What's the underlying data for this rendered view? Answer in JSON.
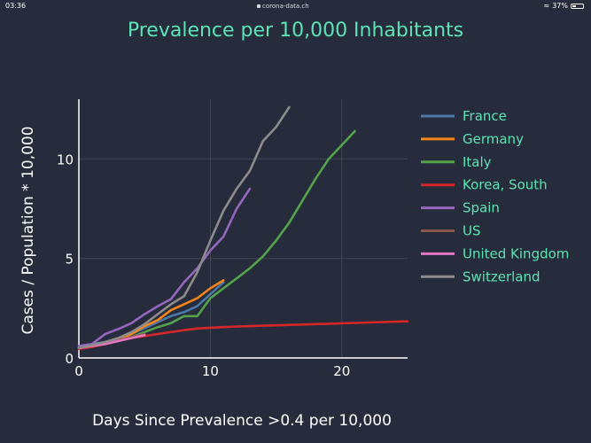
{
  "status_bar": {
    "time": "03:36",
    "url": "corona-data.ch",
    "battery": "37%",
    "battery_level": 0.37
  },
  "chart_data": {
    "type": "line",
    "title": "Prevalence per 10,000 Inhabitants",
    "xlabel": "Days Since Prevalence >0.4 per 10,000",
    "ylabel": "Cases / Population * 10,000",
    "xlim": [
      0,
      25
    ],
    "ylim": [
      0,
      13
    ],
    "x_ticks": [
      0,
      10,
      20
    ],
    "y_ticks": [
      0,
      5,
      10
    ],
    "grid": true,
    "legend_position": "right",
    "series": [
      {
        "name": "France",
        "color": "#4c78a8",
        "x": [
          0,
          1,
          2,
          3,
          4,
          5,
          6,
          7,
          8,
          9,
          10,
          11
        ],
        "y": [
          0.6,
          0.7,
          0.8,
          0.95,
          1.2,
          1.5,
          1.8,
          2.1,
          2.3,
          2.6,
          3.2,
          3.8
        ]
      },
      {
        "name": "Germany",
        "color": "#f58518",
        "x": [
          0,
          1,
          2,
          3,
          4,
          5,
          6,
          7,
          8,
          9,
          10,
          11
        ],
        "y": [
          0.5,
          0.6,
          0.75,
          0.9,
          1.2,
          1.6,
          1.9,
          2.4,
          2.7,
          3.0,
          3.5,
          3.9
        ]
      },
      {
        "name": "Italy",
        "color": "#54a24b",
        "x": [
          0,
          1,
          2,
          3,
          4,
          5,
          6,
          7,
          8,
          9,
          10,
          11,
          12,
          13,
          14,
          15,
          16,
          17,
          18,
          19,
          20,
          21
        ],
        "y": [
          0.5,
          0.6,
          0.7,
          0.85,
          1.05,
          1.3,
          1.55,
          1.75,
          2.1,
          2.1,
          3.0,
          3.5,
          4.0,
          4.5,
          5.1,
          5.9,
          6.8,
          7.9,
          9.0,
          10.0,
          10.7,
          11.4
        ]
      },
      {
        "name": "Korea, South",
        "color": "#d62728",
        "x": [
          0,
          1,
          2,
          3,
          4,
          5,
          6,
          7,
          8,
          9,
          10,
          11,
          12,
          13,
          14,
          15,
          16,
          17,
          18,
          19,
          20,
          21,
          22,
          23,
          24,
          25
        ],
        "y": [
          0.45,
          0.55,
          0.7,
          0.85,
          1.0,
          1.1,
          1.2,
          1.3,
          1.4,
          1.48,
          1.52,
          1.55,
          1.58,
          1.6,
          1.62,
          1.64,
          1.66,
          1.68,
          1.7,
          1.72,
          1.74,
          1.76,
          1.78,
          1.8,
          1.82,
          1.84
        ]
      },
      {
        "name": "Spain",
        "color": "#9467bd",
        "x": [
          0,
          1,
          2,
          3,
          4,
          5,
          6,
          7,
          8,
          9,
          10,
          11,
          12,
          13
        ],
        "y": [
          0.6,
          0.7,
          1.2,
          1.45,
          1.75,
          2.2,
          2.6,
          2.95,
          3.8,
          4.5,
          5.4,
          6.1,
          7.5,
          8.5
        ]
      },
      {
        "name": "US",
        "color": "#8c564b",
        "x": [
          0,
          1,
          2,
          3,
          4,
          5
        ],
        "y": [
          0.5,
          0.6,
          0.75,
          0.9,
          1.05,
          1.2
        ]
      },
      {
        "name": "United Kingdom",
        "color": "#e377c2",
        "x": [
          0,
          1,
          2,
          3,
          4,
          5
        ],
        "y": [
          0.5,
          0.6,
          0.7,
          0.85,
          1.0,
          1.15
        ]
      },
      {
        "name": "Switzerland",
        "color": "#8c8c8c",
        "x": [
          0,
          1,
          2,
          3,
          4,
          5,
          6,
          7,
          8,
          9,
          10,
          11,
          12,
          13,
          14,
          15,
          16
        ],
        "y": [
          0.5,
          0.65,
          0.8,
          1.0,
          1.3,
          1.7,
          2.2,
          2.7,
          3.1,
          4.3,
          5.9,
          7.4,
          8.5,
          9.4,
          10.9,
          11.6,
          12.6
        ]
      }
    ]
  }
}
